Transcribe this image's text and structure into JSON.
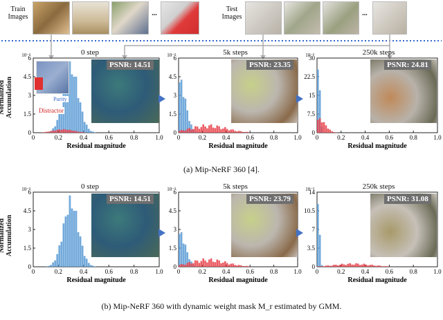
{
  "header": {
    "train_label": "Train Images",
    "test_label": "Test Images",
    "ellipsis": "..."
  },
  "section_a": {
    "caption": "(a)  Mip-NeRF 360 [4].",
    "ylabel_line1": "Normalized",
    "ylabel_line2": "Accumulation",
    "annot_purity": "Purity",
    "annot_distractor": "Distractor",
    "panels": [
      {
        "title": "0 step",
        "psnr": "PSNR: 14.51",
        "xlabel": "Residual magnitude",
        "exp": "10⁻²"
      },
      {
        "title": "5k steps",
        "psnr": "PSNR: 23.35",
        "xlabel": "Residual magnitude",
        "exp": "10⁻²"
      },
      {
        "title": "250k steps",
        "psnr": "PSNR: 24.81",
        "xlabel": "Residual magnitude",
        "exp": "10⁻²"
      }
    ]
  },
  "section_b": {
    "caption": "(b)  Mip-NeRF 360 with dynamic weight mask M_r estimated by GMM.",
    "ylabel_line1": "Normalized",
    "ylabel_line2": "Accumulation",
    "panels": [
      {
        "title": "0 step",
        "psnr": "PSNR: 14.51",
        "xlabel": "Residual magnitude",
        "exp": "10⁻²"
      },
      {
        "title": "5k steps",
        "psnr": "PSNR: 23.79",
        "xlabel": "Residual magnitude",
        "exp": "10⁻²"
      },
      {
        "title": "250k steps",
        "psnr": "PSNR: 31.08",
        "xlabel": "Residual magnitude",
        "exp": "10⁻²"
      }
    ]
  },
  "colors": {
    "blue": "#5b9bd5",
    "red": "#e8424a",
    "arrow": "#4472c4",
    "dotted": "#3366cc"
  },
  "chart_data": [
    {
      "type": "bar",
      "xlim": [
        0,
        1
      ],
      "ylim": [
        0,
        6
      ],
      "xticks": [
        "0",
        "0.2",
        "0.4",
        "0.6",
        "0.8",
        "1.0"
      ],
      "yticks": [
        "0",
        "1.5",
        "3",
        "4.5",
        "6"
      ],
      "series": [
        {
          "name": "Purity",
          "peak_x": 0.3,
          "peak_y": 5.8,
          "spread": 0.06
        },
        {
          "name": "Distractor",
          "peak_x": 0.24,
          "peak_y": 0.3,
          "spread": 0.08
        }
      ]
    },
    {
      "type": "bar",
      "xlim": [
        0,
        1
      ],
      "ylim": [
        0,
        6
      ],
      "xticks": [
        "0",
        "0.2",
        "0.4",
        "0.6",
        "0.8",
        "1.0"
      ],
      "yticks": [
        "0",
        "1.5",
        "3",
        "4.5",
        "6"
      ],
      "series": [
        {
          "peak_x": 0.01,
          "peak_y": 4.6,
          "spread": 0.05
        },
        {
          "peak_x": 0.25,
          "peak_y": 0.7,
          "spread": 0.15
        }
      ]
    },
    {
      "type": "bar",
      "xlim": [
        0,
        1
      ],
      "ylim": [
        0,
        30
      ],
      "xticks": [
        "0",
        "0.2",
        "0.4",
        "0.6",
        "0.8",
        "1.0"
      ],
      "yticks": [
        "0",
        "7.5",
        "15",
        "22.5",
        "30"
      ],
      "series": [
        {
          "peak_x": 0.01,
          "peak_y": 29,
          "spread": 0.015
        },
        {
          "peak_x": 0.02,
          "peak_y": 6,
          "spread": 0.05
        }
      ]
    },
    {
      "type": "bar",
      "xlim": [
        0,
        1
      ],
      "ylim": [
        0,
        6
      ],
      "xticks": [
        "0",
        "0.2",
        "0.4",
        "0.6",
        "0.8",
        "1.0"
      ],
      "yticks": [
        "0",
        "1.5",
        "3",
        "4.5",
        "6"
      ],
      "series": [
        {
          "peak_x": 0.3,
          "peak_y": 5.8,
          "spread": 0.06
        }
      ]
    },
    {
      "type": "bar",
      "xlim": [
        0,
        1
      ],
      "ylim": [
        0,
        6
      ],
      "xticks": [
        "0",
        "0.2",
        "0.4",
        "0.6",
        "0.8",
        "1.0"
      ],
      "yticks": [
        "0",
        "1.5",
        "3",
        "4.5",
        "6"
      ],
      "series": [
        {
          "peak_x": 0.01,
          "peak_y": 3.0,
          "spread": 0.05
        },
        {
          "peak_x": 0.25,
          "peak_y": 0.7,
          "spread": 0.15
        }
      ]
    },
    {
      "type": "bar",
      "xlim": [
        0,
        1
      ],
      "ylim": [
        0,
        14
      ],
      "xticks": [
        "0",
        "0.2",
        "0.4",
        "0.6",
        "0.8",
        "1.0"
      ],
      "yticks": [
        "0",
        "3.5",
        "7",
        "10.5",
        "14"
      ],
      "series": [
        {
          "peak_x": 0.01,
          "peak_y": 13.5,
          "spread": 0.012
        },
        {
          "peak_x": 0.3,
          "peak_y": 0.7,
          "spread": 0.15
        }
      ]
    }
  ]
}
